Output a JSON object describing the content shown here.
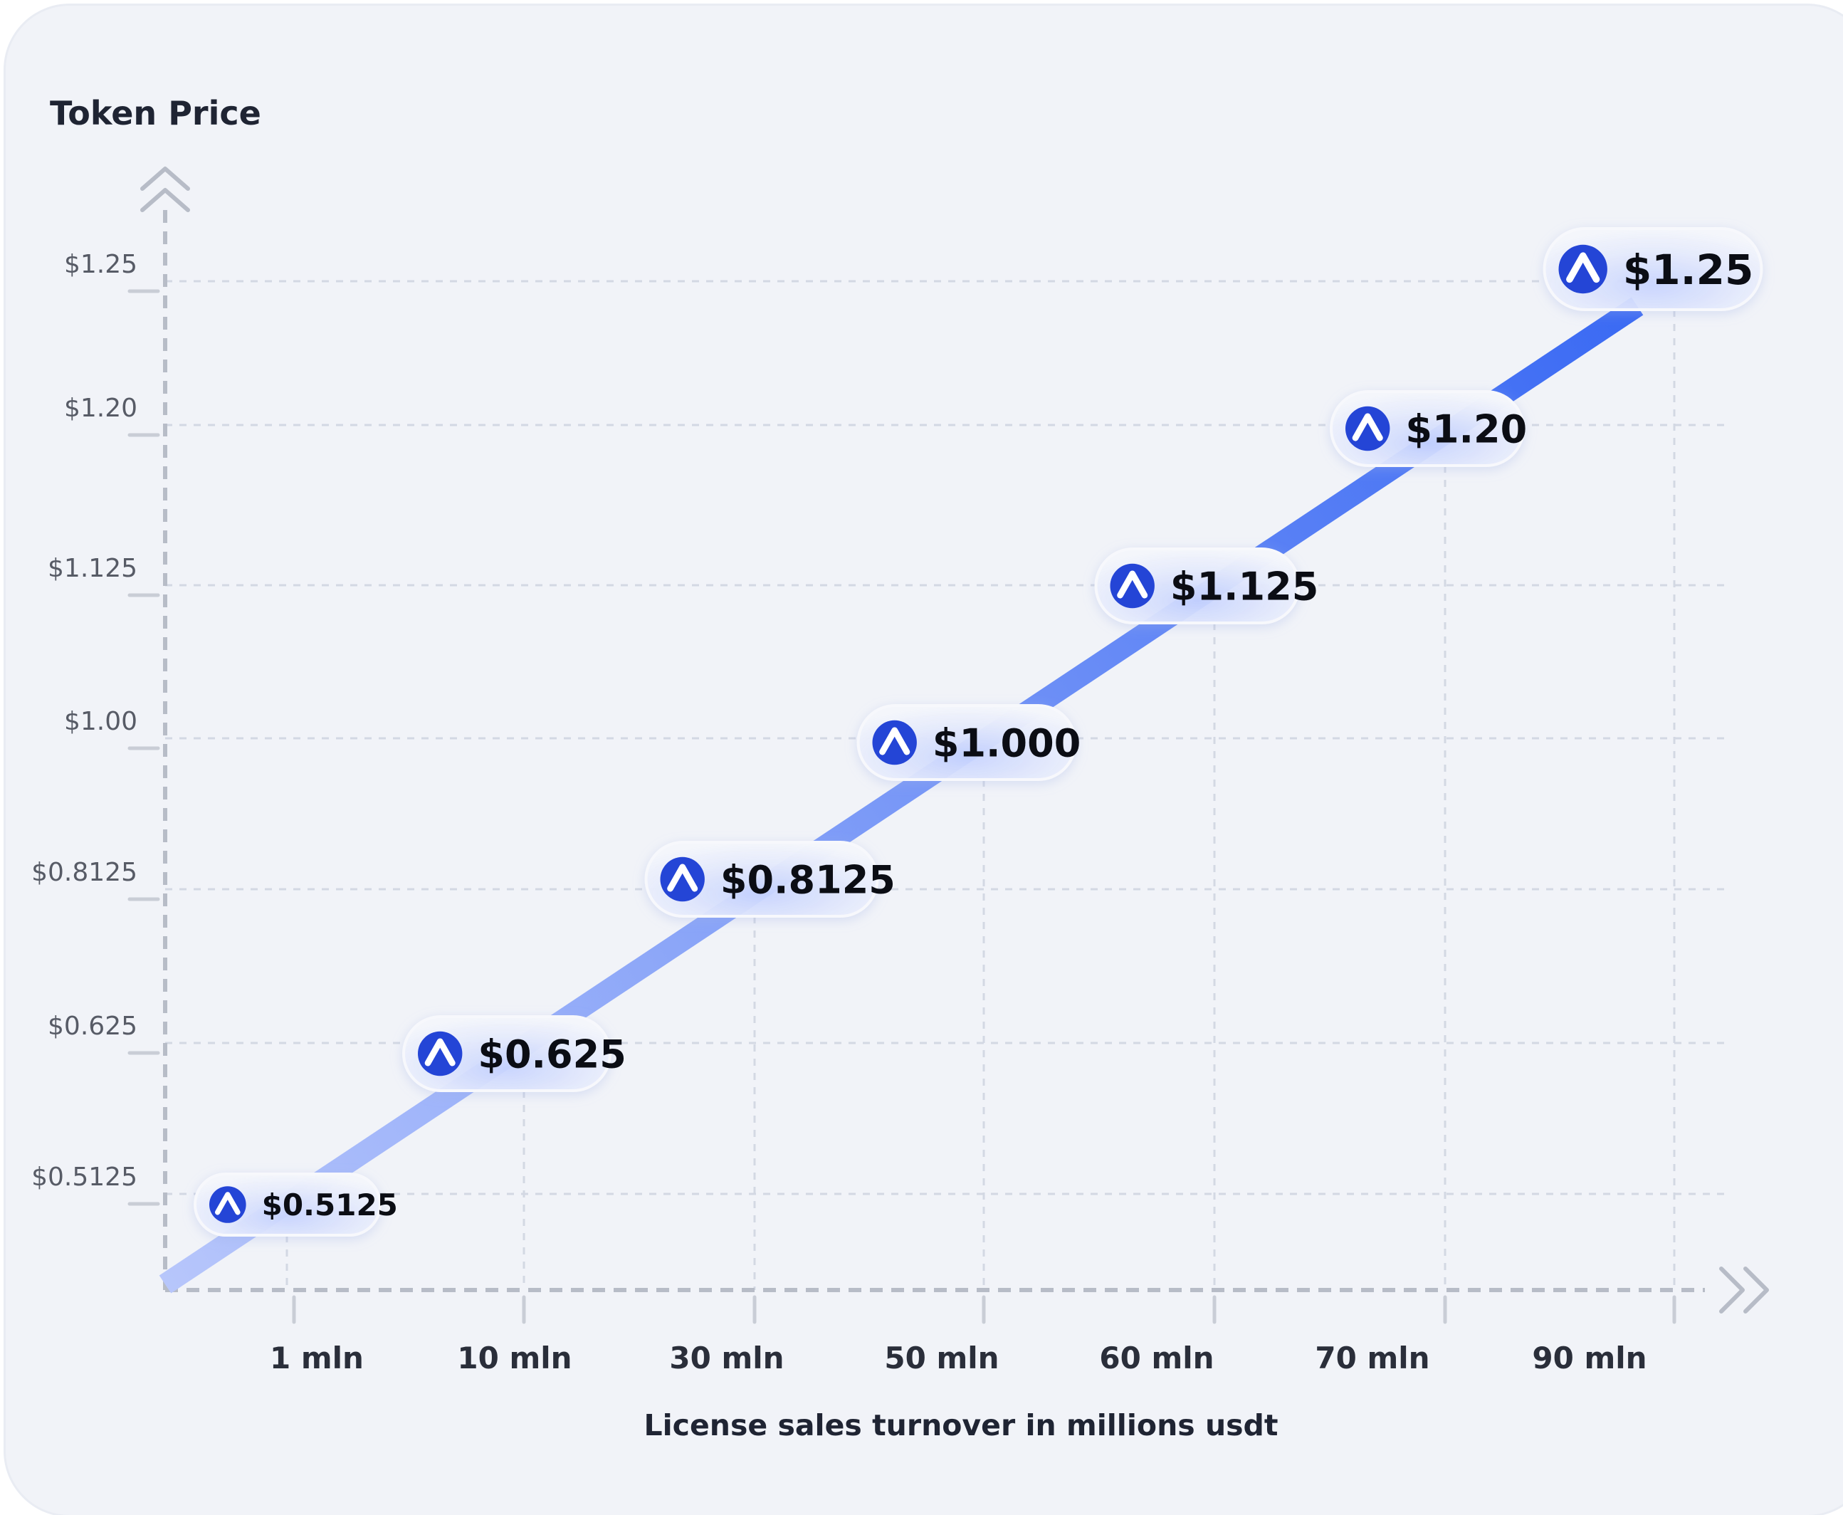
{
  "chart_data": {
    "type": "line",
    "ylabel": "Token Price",
    "xlabel": "License sales turnover in millions usdt",
    "categories": [
      "1 mln",
      "10 mln",
      "30 mln",
      "50 mln",
      "60 mln",
      "70 mln",
      "90 mln"
    ],
    "y_ticks": [
      "$1.25",
      "$1.20",
      "$1.125",
      "$1.00",
      "$0.8125",
      "$0.625",
      "$0.5125"
    ],
    "points": [
      {
        "x": "1 mln",
        "y": 0.5125,
        "label": "$0.5125"
      },
      {
        "x": "10 mln",
        "y": 0.625,
        "label": "$0.625"
      },
      {
        "x": "30 mln",
        "y": 0.8125,
        "label": "$0.8125"
      },
      {
        "x": "50 mln",
        "y": 1.0,
        "label": "$1.000"
      },
      {
        "x": "60 mln",
        "y": 1.125,
        "label": "$1.125"
      },
      {
        "x": "70 mln",
        "y": 1.2,
        "label": "$1.20"
      },
      {
        "x": "90 mln",
        "y": 1.25,
        "label": "$1.25"
      }
    ],
    "grid": true,
    "colors": {
      "line_start": "#b7c6fb",
      "line_end": "#3868f3",
      "badge_icon": "#2445d6"
    }
  }
}
